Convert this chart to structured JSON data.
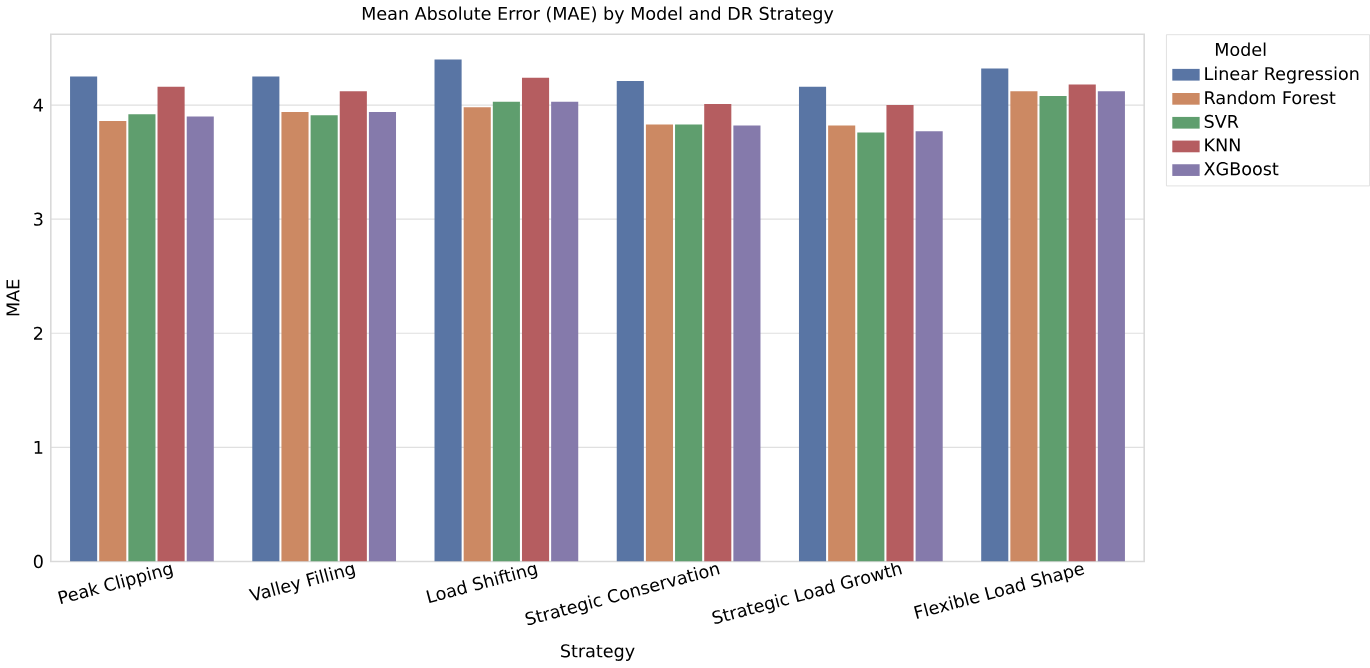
{
  "chart_data": {
    "type": "bar",
    "title": "Mean Absolute Error (MAE) by Model and DR Strategy",
    "xlabel": "Strategy",
    "ylabel": "MAE",
    "legend_title": "Model",
    "categories": [
      "Peak Clipping",
      "Valley Filling",
      "Load Shifting",
      "Strategic Conservation",
      "Strategic Load Growth",
      "Flexible Load Shape"
    ],
    "series": [
      {
        "name": "Linear Regression",
        "color": "#5975a4",
        "values": [
          4.25,
          4.25,
          4.4,
          4.21,
          4.16,
          4.32
        ]
      },
      {
        "name": "Random Forest",
        "color": "#cc8963",
        "values": [
          3.86,
          3.94,
          3.98,
          3.83,
          3.82,
          4.12
        ]
      },
      {
        "name": "SVR",
        "color": "#5f9e6e",
        "values": [
          3.92,
          3.91,
          4.03,
          3.83,
          3.76,
          4.08
        ]
      },
      {
        "name": "KNN",
        "color": "#b55d60",
        "values": [
          4.16,
          4.12,
          4.24,
          4.01,
          4.0,
          4.18
        ]
      },
      {
        "name": "XGBoost",
        "color": "#857aab",
        "values": [
          3.9,
          3.94,
          4.03,
          3.82,
          3.77,
          4.12
        ]
      }
    ],
    "ylim": [
      0,
      4.62
    ],
    "yticks": [
      0,
      1,
      2,
      3,
      4
    ],
    "grid": "y",
    "legend": "right"
  }
}
